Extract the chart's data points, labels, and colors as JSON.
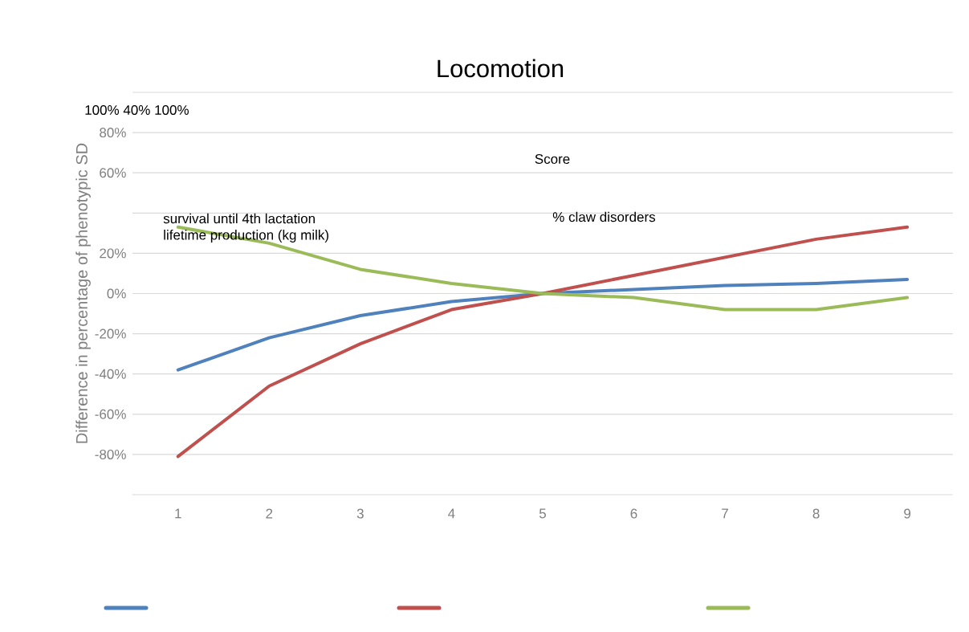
{
  "chart_data": {
    "type": "line",
    "title": "Locomotion",
    "ylabel": "Difference in percentage of phenotypic SD",
    "categories": [
      "1",
      "2",
      "3",
      "4",
      "5",
      "6",
      "7",
      "8",
      "9"
    ],
    "series": [
      {
        "color": "#4f81bd",
        "values": [
          -38,
          -22,
          -11,
          -4,
          0,
          2,
          4,
          5,
          7
        ]
      },
      {
        "color": "#c0504d",
        "values": [
          -81,
          -46,
          -25,
          -8,
          0,
          9,
          18,
          27,
          33
        ]
      },
      {
        "color": "#9bbb59",
        "values": [
          33,
          25,
          12,
          5,
          0,
          -2,
          -8,
          -8,
          -2
        ]
      }
    ],
    "ylim": [
      -100,
      100
    ],
    "yticks": [
      {
        "value": -100,
        "label": null
      },
      {
        "value": -80,
        "label": "-80%"
      },
      {
        "value": -60,
        "label": "-60%"
      },
      {
        "value": -40,
        "label": "-40%"
      },
      {
        "value": -20,
        "label": "-20%"
      },
      {
        "value": 0,
        "label": "0%"
      },
      {
        "value": 20,
        "label": "20%"
      },
      {
        "value": 40,
        "label": null
      },
      {
        "value": 60,
        "label": "60%"
      },
      {
        "value": 80,
        "label": "80%"
      },
      {
        "value": 100,
        "label": null
      }
    ],
    "grid": "y",
    "marker": "none",
    "line_style": "solid",
    "annotations": [
      "100% 40% 100%",
      "Score",
      "survival until 4th lactation",
      "lifetime production (kg milk)",
      "% claw disorders"
    ]
  }
}
